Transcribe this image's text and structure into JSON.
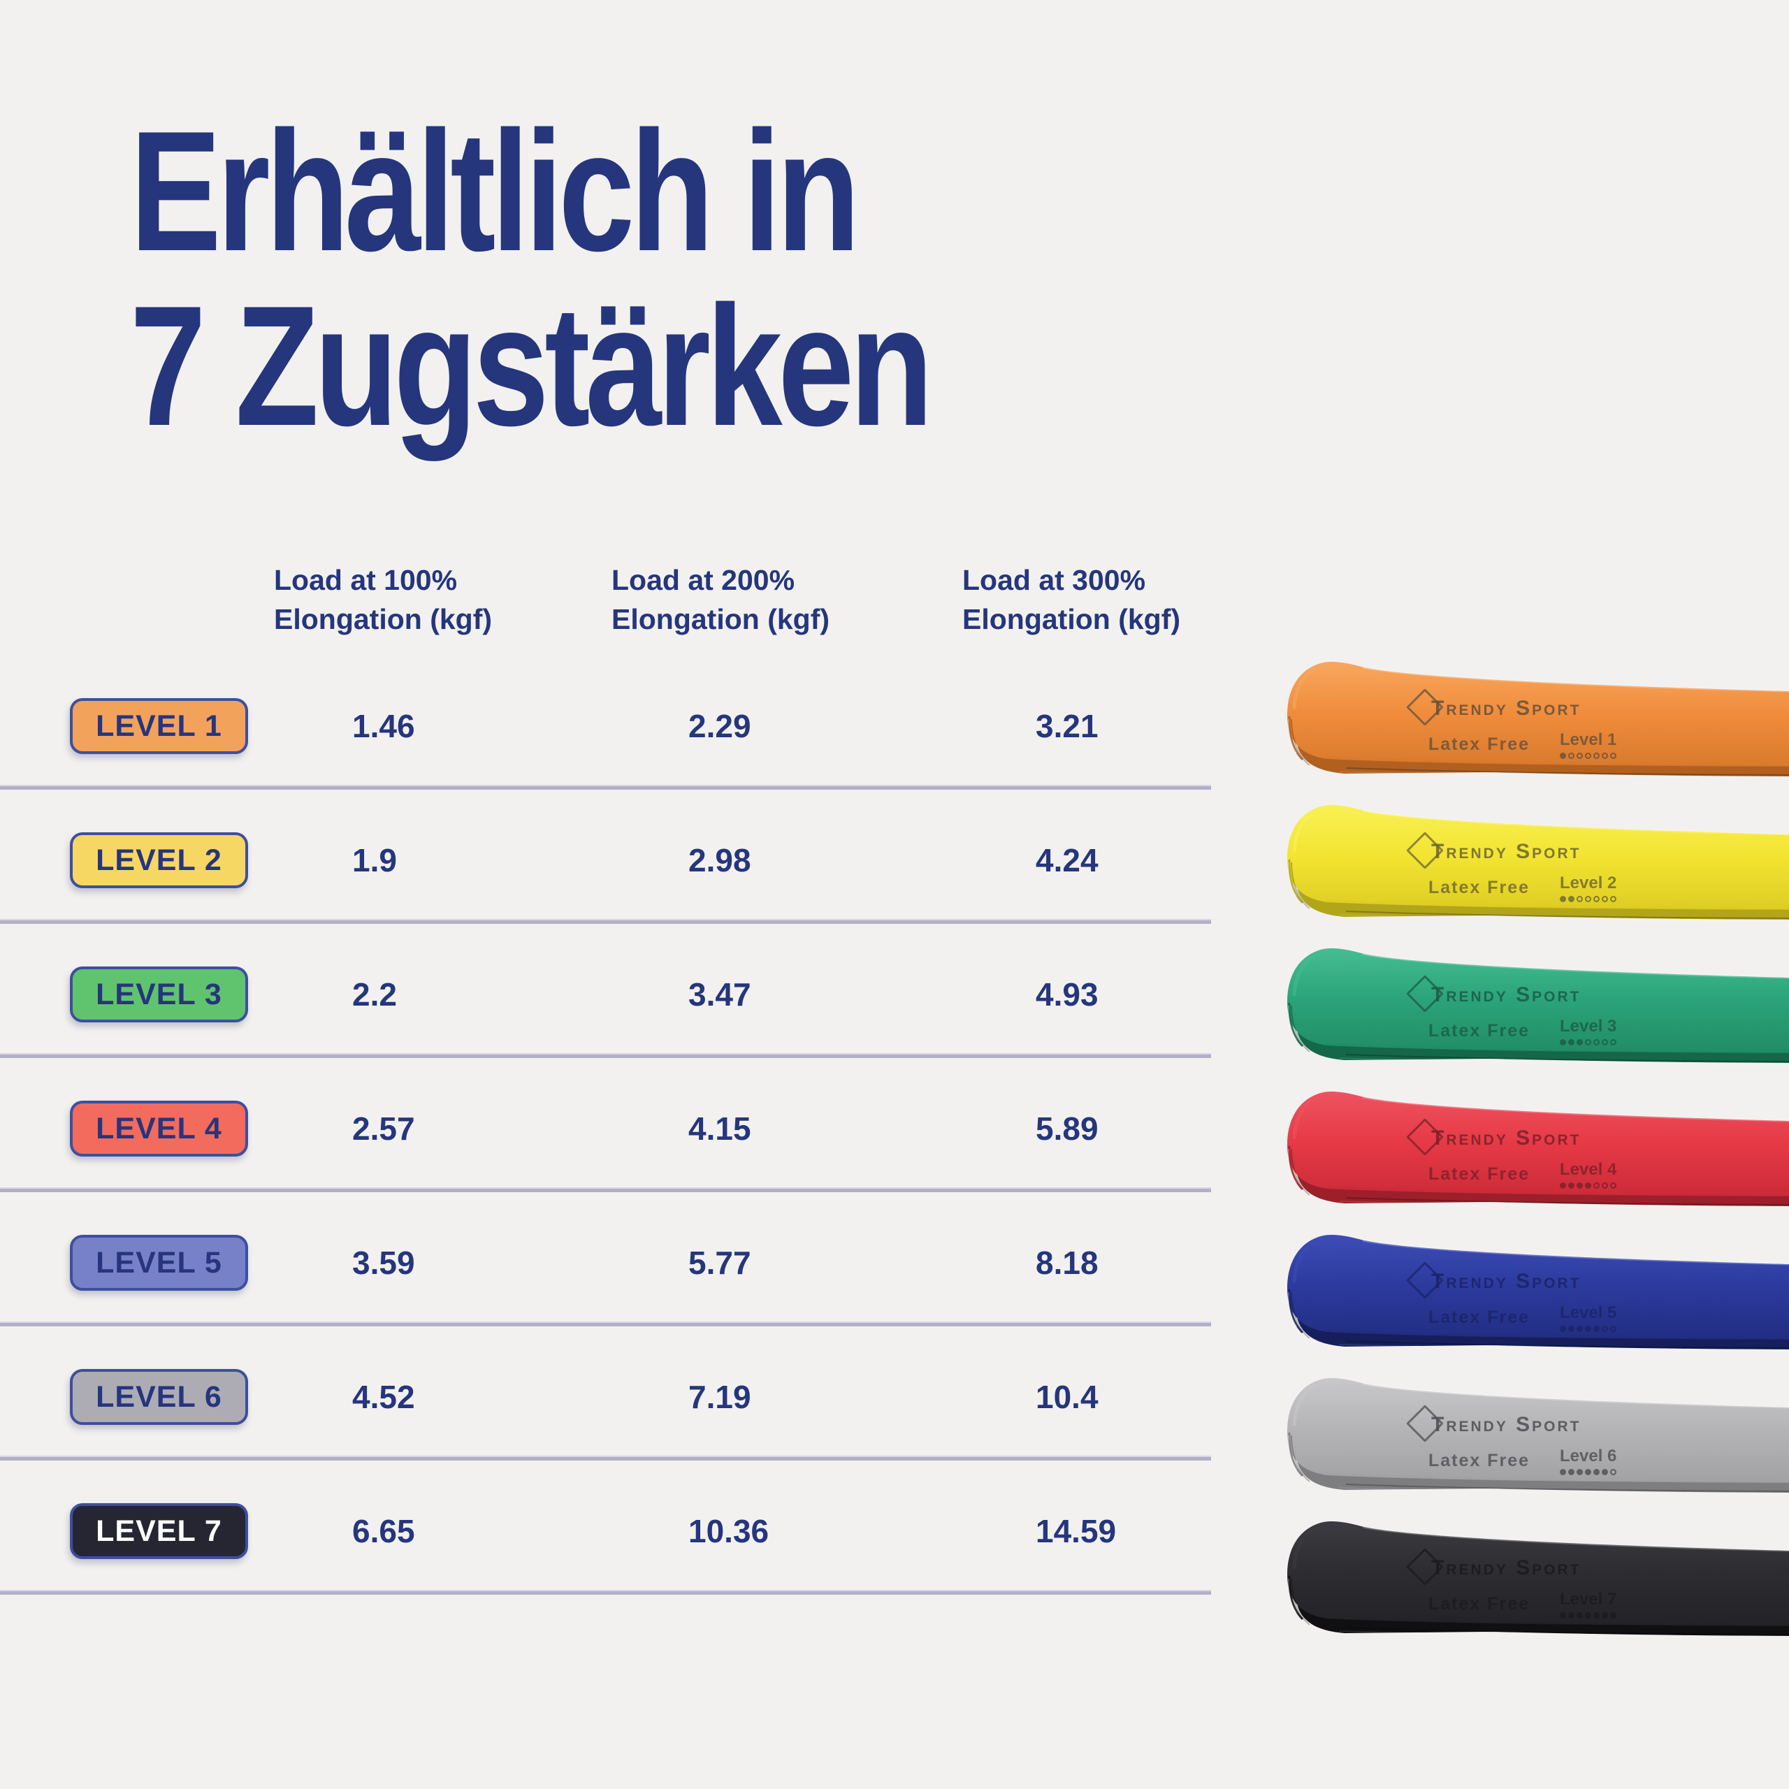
{
  "title": {
    "line1": "Erhältlich in",
    "line2": "7 Zugstärken"
  },
  "colors": {
    "background": "#f2f1ef",
    "heading_text": "#25367c",
    "divider": "#b2b0c7",
    "badge_border": "#3e4f9f"
  },
  "table": {
    "headers": [
      {
        "line1": "Load at 100%",
        "line2": "Elongation (kgf)"
      },
      {
        "line1": "Load at 200%",
        "line2": "Elongation (kgf)"
      },
      {
        "line1": "Load at 300%",
        "line2": "Elongation (kgf)"
      }
    ],
    "rows": [
      {
        "level_label": "LEVEL 1",
        "load_100": "1.46",
        "load_200": "2.29",
        "load_300": "3.21",
        "badge_fill": "#f3a25b",
        "badge_text": "#26357e"
      },
      {
        "level_label": "LEVEL 2",
        "load_100": "1.9",
        "load_200": "2.98",
        "load_300": "4.24",
        "badge_fill": "#f7d763",
        "badge_text": "#26357e"
      },
      {
        "level_label": "LEVEL 3",
        "load_100": "2.2",
        "load_200": "3.47",
        "load_300": "4.93",
        "badge_fill": "#5fc46d",
        "badge_text": "#26357e"
      },
      {
        "level_label": "LEVEL 4",
        "load_100": "2.57",
        "load_200": "4.15",
        "load_300": "5.89",
        "badge_fill": "#f26b5c",
        "badge_text": "#26357e"
      },
      {
        "level_label": "LEVEL 5",
        "load_100": "3.59",
        "load_200": "5.77",
        "load_300": "8.18",
        "badge_fill": "#7781c8",
        "badge_text": "#26357e"
      },
      {
        "level_label": "LEVEL 6",
        "load_100": "4.52",
        "load_200": "7.19",
        "load_300": "10.4",
        "badge_fill": "#adacb4",
        "badge_text": "#26357e"
      },
      {
        "level_label": "LEVEL 7",
        "load_100": "6.65",
        "load_200": "10.36",
        "load_300": "14.59",
        "badge_fill": "#262532",
        "badge_text": "#ffffff"
      }
    ]
  },
  "bands": [
    {
      "brand": "Trendy Sport",
      "latex_label": "Latex Free",
      "level_label": "Level 1",
      "level": 1,
      "base": "#f08c3c",
      "light": "#f8a75e",
      "dark": "#d97a2c",
      "edge": "#b2601f",
      "ink": "#66513b"
    },
    {
      "brand": "Trendy Sport",
      "latex_label": "Latex Free",
      "level_label": "Level 2",
      "level": 2,
      "base": "#f2e431",
      "light": "#f9f055",
      "dark": "#ddcd24",
      "edge": "#b3a51a",
      "ink": "#6d652c"
    },
    {
      "brand": "Trendy Sport",
      "latex_label": "Latex Free",
      "level_label": "Level 3",
      "level": 3,
      "base": "#2ba37a",
      "light": "#46bd92",
      "dark": "#218d66",
      "edge": "#15674a",
      "ink": "#1c5c46"
    },
    {
      "brand": "Trendy Sport",
      "latex_label": "Latex Free",
      "level_label": "Level 4",
      "level": 4,
      "base": "#e63946",
      "light": "#ee5360",
      "dark": "#cc2b39",
      "edge": "#9c1f2a",
      "ink": "#7c2029"
    },
    {
      "brand": "Trendy Sport",
      "latex_label": "Latex Free",
      "level_label": "Level 5",
      "level": 5,
      "base": "#2c3a9d",
      "light": "#3d4db6",
      "dark": "#222e82",
      "edge": "#151f5c",
      "ink": "#1b2466"
    },
    {
      "brand": "Trendy Sport",
      "latex_label": "Latex Free",
      "level_label": "Level 6",
      "level": 6,
      "base": "#b4b3b5",
      "light": "#c8c7c9",
      "dark": "#a2a1a3",
      "edge": "#7e7d80",
      "ink": "#4e4e53"
    },
    {
      "brand": "Trendy Sport",
      "latex_label": "Latex Free",
      "level_label": "Level 7",
      "level": 7,
      "base": "#2d2d31",
      "light": "#3b3b40",
      "dark": "#232327",
      "edge": "#101012",
      "ink": "#1b1b1f"
    }
  ],
  "chart_data": {
    "type": "table",
    "title": "Erhältlich in 7 Zugstärken",
    "categories": [
      "Level 1",
      "Level 2",
      "Level 3",
      "Level 4",
      "Level 5",
      "Level 6",
      "Level 7"
    ],
    "series": [
      {
        "name": "Load at 100% Elongation (kgf)",
        "values": [
          1.46,
          1.9,
          2.2,
          2.57,
          3.59,
          4.52,
          6.65
        ]
      },
      {
        "name": "Load at 200% Elongation (kgf)",
        "values": [
          2.29,
          2.98,
          3.47,
          4.15,
          5.77,
          7.19,
          10.36
        ]
      },
      {
        "name": "Load at 300% Elongation (kgf)",
        "values": [
          3.21,
          4.24,
          4.93,
          5.89,
          8.18,
          10.4,
          14.59
        ]
      }
    ],
    "legend_position": "none",
    "grid": "horizontal-row-dividers"
  }
}
